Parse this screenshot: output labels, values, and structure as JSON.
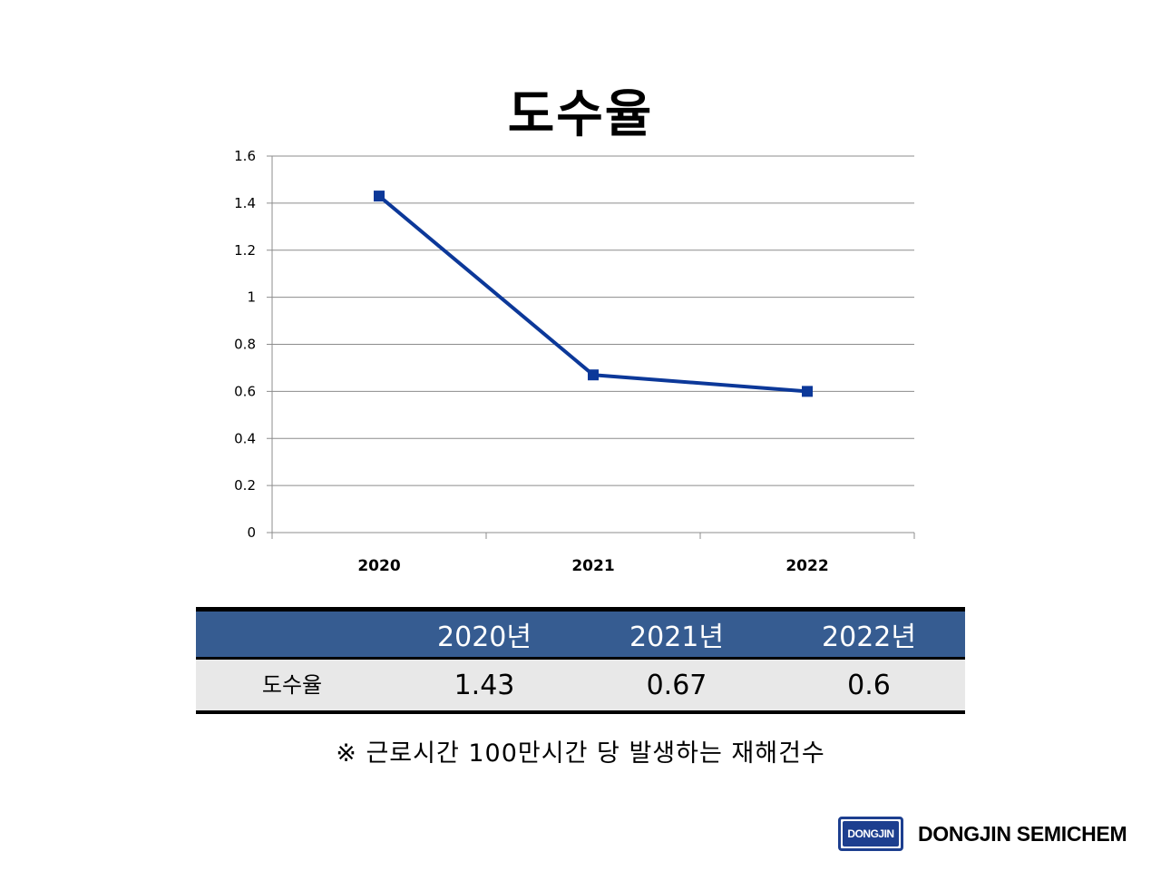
{
  "chart_data": {
    "type": "line",
    "title": "도수율",
    "categories": [
      "2020",
      "2021",
      "2022"
    ],
    "series": [
      {
        "values": [
          1.43,
          0.67,
          0.6
        ],
        "color": "#0c3899"
      }
    ],
    "ylim": [
      0,
      1.6
    ],
    "yticks": [
      "0",
      "0.2",
      "0.4",
      "0.6",
      "0.8",
      "1",
      "1.2",
      "1.4",
      "1.6"
    ],
    "grid": true,
    "legend": "none",
    "marker": "square"
  },
  "table": {
    "headers": [
      "",
      "2020년",
      "2021년",
      "2022년"
    ],
    "row_label": "도수율",
    "values": [
      "1.43",
      "0.67",
      "0.6"
    ],
    "header_color": "#365c91",
    "row_color": "#e8e8e8"
  },
  "footnote": "※ 근로시간 100만시간 당 발생하는 재해건수",
  "logo": {
    "badge": "DONGJIN",
    "name": "DONGJIN SEMICHEM",
    "color": "#1d3f8f"
  }
}
